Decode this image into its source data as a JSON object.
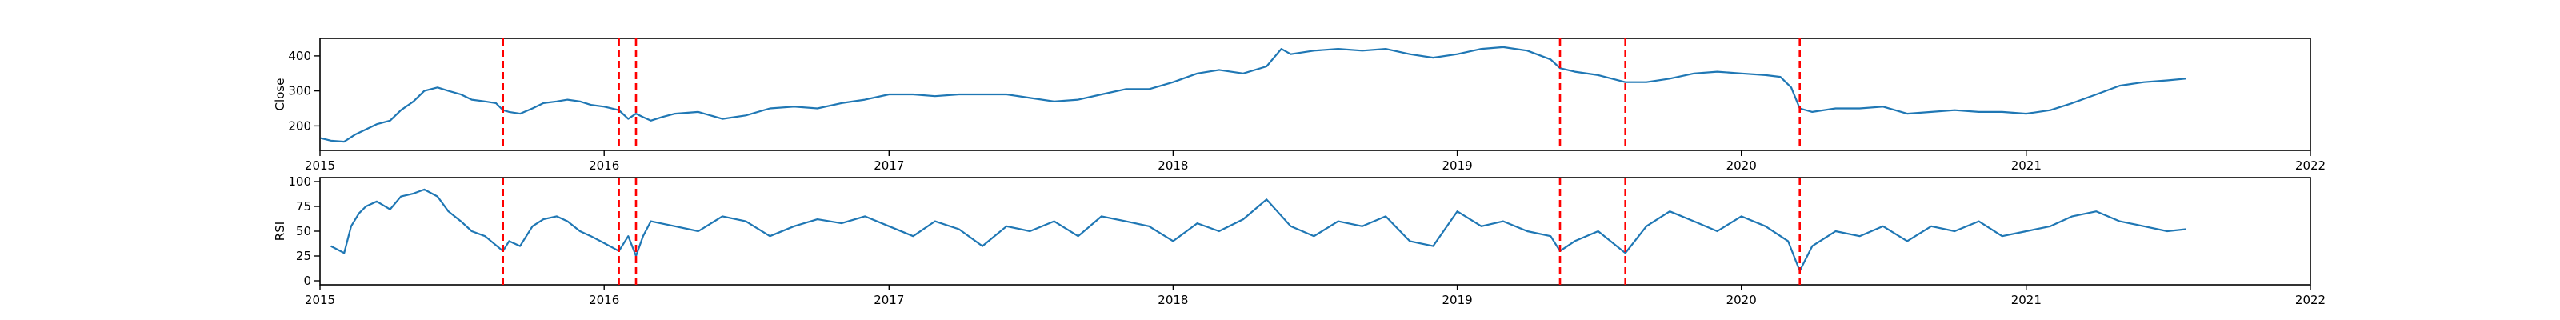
{
  "colors": {
    "series": "#1f77b4",
    "markers": "#ff0000",
    "axes": "#000000",
    "background": "#ffffff"
  },
  "chart_data": [
    {
      "type": "line",
      "ylabel": "Close",
      "xlim": [
        "2015-01-01",
        "2022-01-01"
      ],
      "ylim": [
        130,
        450
      ],
      "yticks": [
        200,
        300,
        400
      ],
      "xticks": [
        "2015",
        "2016",
        "2017",
        "2018",
        "2019",
        "2020",
        "2021",
        "2022"
      ],
      "grid": false,
      "vlines": [
        "2015-08-24",
        "2016-01-20",
        "2016-02-11",
        "2019-05-13",
        "2019-08-05",
        "2020-03-16"
      ],
      "series": [
        {
          "name": "",
          "x": [
            "2015-01-02",
            "2015-01-15",
            "2015-02-01",
            "2015-02-15",
            "2015-03-01",
            "2015-03-15",
            "2015-04-01",
            "2015-04-15",
            "2015-05-01",
            "2015-05-15",
            "2015-06-01",
            "2015-06-15",
            "2015-07-01",
            "2015-07-15",
            "2015-08-01",
            "2015-08-15",
            "2015-08-24",
            "2015-09-01",
            "2015-09-15",
            "2015-10-01",
            "2015-10-15",
            "2015-11-01",
            "2015-11-15",
            "2015-12-01",
            "2015-12-15",
            "2016-01-01",
            "2016-01-20",
            "2016-02-01",
            "2016-02-11",
            "2016-02-20",
            "2016-03-01",
            "2016-03-15",
            "2016-04-01",
            "2016-05-01",
            "2016-06-01",
            "2016-07-01",
            "2016-08-01",
            "2016-09-01",
            "2016-10-01",
            "2016-11-01",
            "2016-12-01",
            "2017-01-01",
            "2017-02-01",
            "2017-03-01",
            "2017-04-01",
            "2017-05-01",
            "2017-06-01",
            "2017-07-01",
            "2017-08-01",
            "2017-09-01",
            "2017-10-01",
            "2017-11-01",
            "2017-12-01",
            "2018-01-01",
            "2018-02-01",
            "2018-03-01",
            "2018-04-01",
            "2018-05-01",
            "2018-05-20",
            "2018-06-01",
            "2018-07-01",
            "2018-08-01",
            "2018-09-01",
            "2018-10-01",
            "2018-11-01",
            "2018-12-01",
            "2019-01-01",
            "2019-02-01",
            "2019-03-01",
            "2019-04-01",
            "2019-05-01",
            "2019-05-13",
            "2019-06-01",
            "2019-07-01",
            "2019-08-05",
            "2019-09-01",
            "2019-10-01",
            "2019-11-01",
            "2019-12-01",
            "2020-01-01",
            "2020-02-01",
            "2020-02-20",
            "2020-03-05",
            "2020-03-16",
            "2020-04-01",
            "2020-05-01",
            "2020-06-01",
            "2020-07-01",
            "2020-08-01",
            "2020-09-01",
            "2020-10-01",
            "2020-11-01",
            "2020-12-01",
            "2021-01-01",
            "2021-02-01",
            "2021-03-01",
            "2021-04-01",
            "2021-05-01",
            "2021-06-01",
            "2021-07-01",
            "2021-07-25"
          ],
          "values": [
            165,
            158,
            155,
            175,
            190,
            205,
            215,
            245,
            270,
            300,
            310,
            300,
            290,
            275,
            270,
            265,
            245,
            240,
            235,
            250,
            265,
            270,
            275,
            270,
            260,
            255,
            245,
            220,
            235,
            225,
            215,
            225,
            235,
            240,
            220,
            230,
            250,
            255,
            250,
            265,
            275,
            290,
            290,
            285,
            290,
            290,
            290,
            280,
            270,
            275,
            290,
            305,
            305,
            325,
            350,
            360,
            350,
            370,
            420,
            405,
            415,
            420,
            415,
            420,
            405,
            395,
            405,
            420,
            425,
            415,
            390,
            365,
            355,
            345,
            325,
            325,
            335,
            350,
            355,
            350,
            345,
            340,
            310,
            250,
            240,
            250,
            250,
            255,
            235,
            240,
            245,
            240,
            240,
            235,
            245,
            265,
            290,
            315,
            325,
            330,
            335
          ]
        }
      ]
    },
    {
      "type": "line",
      "ylabel": "RSI",
      "xlim": [
        "2015-01-01",
        "2022-01-01"
      ],
      "ylim": [
        -4,
        104
      ],
      "yticks": [
        0,
        25,
        50,
        75,
        100
      ],
      "xticks": [
        "2015",
        "2016",
        "2017",
        "2018",
        "2019",
        "2020",
        "2021",
        "2022"
      ],
      "grid": false,
      "vlines": [
        "2015-08-24",
        "2016-01-20",
        "2016-02-11",
        "2019-05-13",
        "2019-08-05",
        "2020-03-16"
      ],
      "series": [
        {
          "name": "",
          "x": [
            "2015-01-15",
            "2015-02-01",
            "2015-02-10",
            "2015-02-20",
            "2015-03-01",
            "2015-03-15",
            "2015-04-01",
            "2015-04-15",
            "2015-05-01",
            "2015-05-15",
            "2015-06-01",
            "2015-06-15",
            "2015-07-01",
            "2015-07-15",
            "2015-08-01",
            "2015-08-24",
            "2015-09-01",
            "2015-09-15",
            "2015-10-01",
            "2015-10-15",
            "2015-11-01",
            "2015-11-15",
            "2015-12-01",
            "2015-12-15",
            "2016-01-01",
            "2016-01-20",
            "2016-02-01",
            "2016-02-11",
            "2016-02-20",
            "2016-03-01",
            "2016-04-01",
            "2016-05-01",
            "2016-06-01",
            "2016-07-01",
            "2016-08-01",
            "2016-09-01",
            "2016-10-01",
            "2016-11-01",
            "2016-12-01",
            "2017-01-01",
            "2017-02-01",
            "2017-03-01",
            "2017-04-01",
            "2017-05-01",
            "2017-06-01",
            "2017-07-01",
            "2017-08-01",
            "2017-09-01",
            "2017-10-01",
            "2017-11-01",
            "2017-12-01",
            "2018-01-01",
            "2018-02-01",
            "2018-03-01",
            "2018-04-01",
            "2018-05-01",
            "2018-06-01",
            "2018-07-01",
            "2018-08-01",
            "2018-09-01",
            "2018-10-01",
            "2018-11-01",
            "2018-12-01",
            "2019-01-01",
            "2019-02-01",
            "2019-03-01",
            "2019-04-01",
            "2019-05-01",
            "2019-05-13",
            "2019-06-01",
            "2019-07-01",
            "2019-08-05",
            "2019-09-01",
            "2019-10-01",
            "2019-11-01",
            "2019-12-01",
            "2020-01-01",
            "2020-02-01",
            "2020-03-01",
            "2020-03-16",
            "2020-04-01",
            "2020-05-01",
            "2020-06-01",
            "2020-07-01",
            "2020-08-01",
            "2020-09-01",
            "2020-10-01",
            "2020-11-01",
            "2020-12-01",
            "2021-01-01",
            "2021-02-01",
            "2021-03-01",
            "2021-04-01",
            "2021-05-01",
            "2021-06-01",
            "2021-07-01",
            "2021-07-25"
          ],
          "values": [
            35,
            28,
            55,
            68,
            75,
            80,
            72,
            85,
            88,
            92,
            85,
            70,
            60,
            50,
            45,
            30,
            40,
            35,
            55,
            62,
            65,
            60,
            50,
            45,
            38,
            30,
            45,
            25,
            45,
            60,
            55,
            50,
            65,
            60,
            45,
            55,
            62,
            58,
            65,
            55,
            45,
            60,
            52,
            35,
            55,
            50,
            60,
            45,
            65,
            60,
            55,
            40,
            58,
            50,
            62,
            82,
            55,
            45,
            60,
            55,
            65,
            40,
            35,
            70,
            55,
            60,
            50,
            45,
            30,
            40,
            50,
            28,
            55,
            70,
            60,
            50,
            65,
            55,
            40,
            10,
            35,
            50,
            45,
            55,
            40,
            55,
            50,
            60,
            45,
            50,
            55,
            65,
            70,
            60,
            55,
            50,
            52
          ]
        }
      ]
    }
  ]
}
